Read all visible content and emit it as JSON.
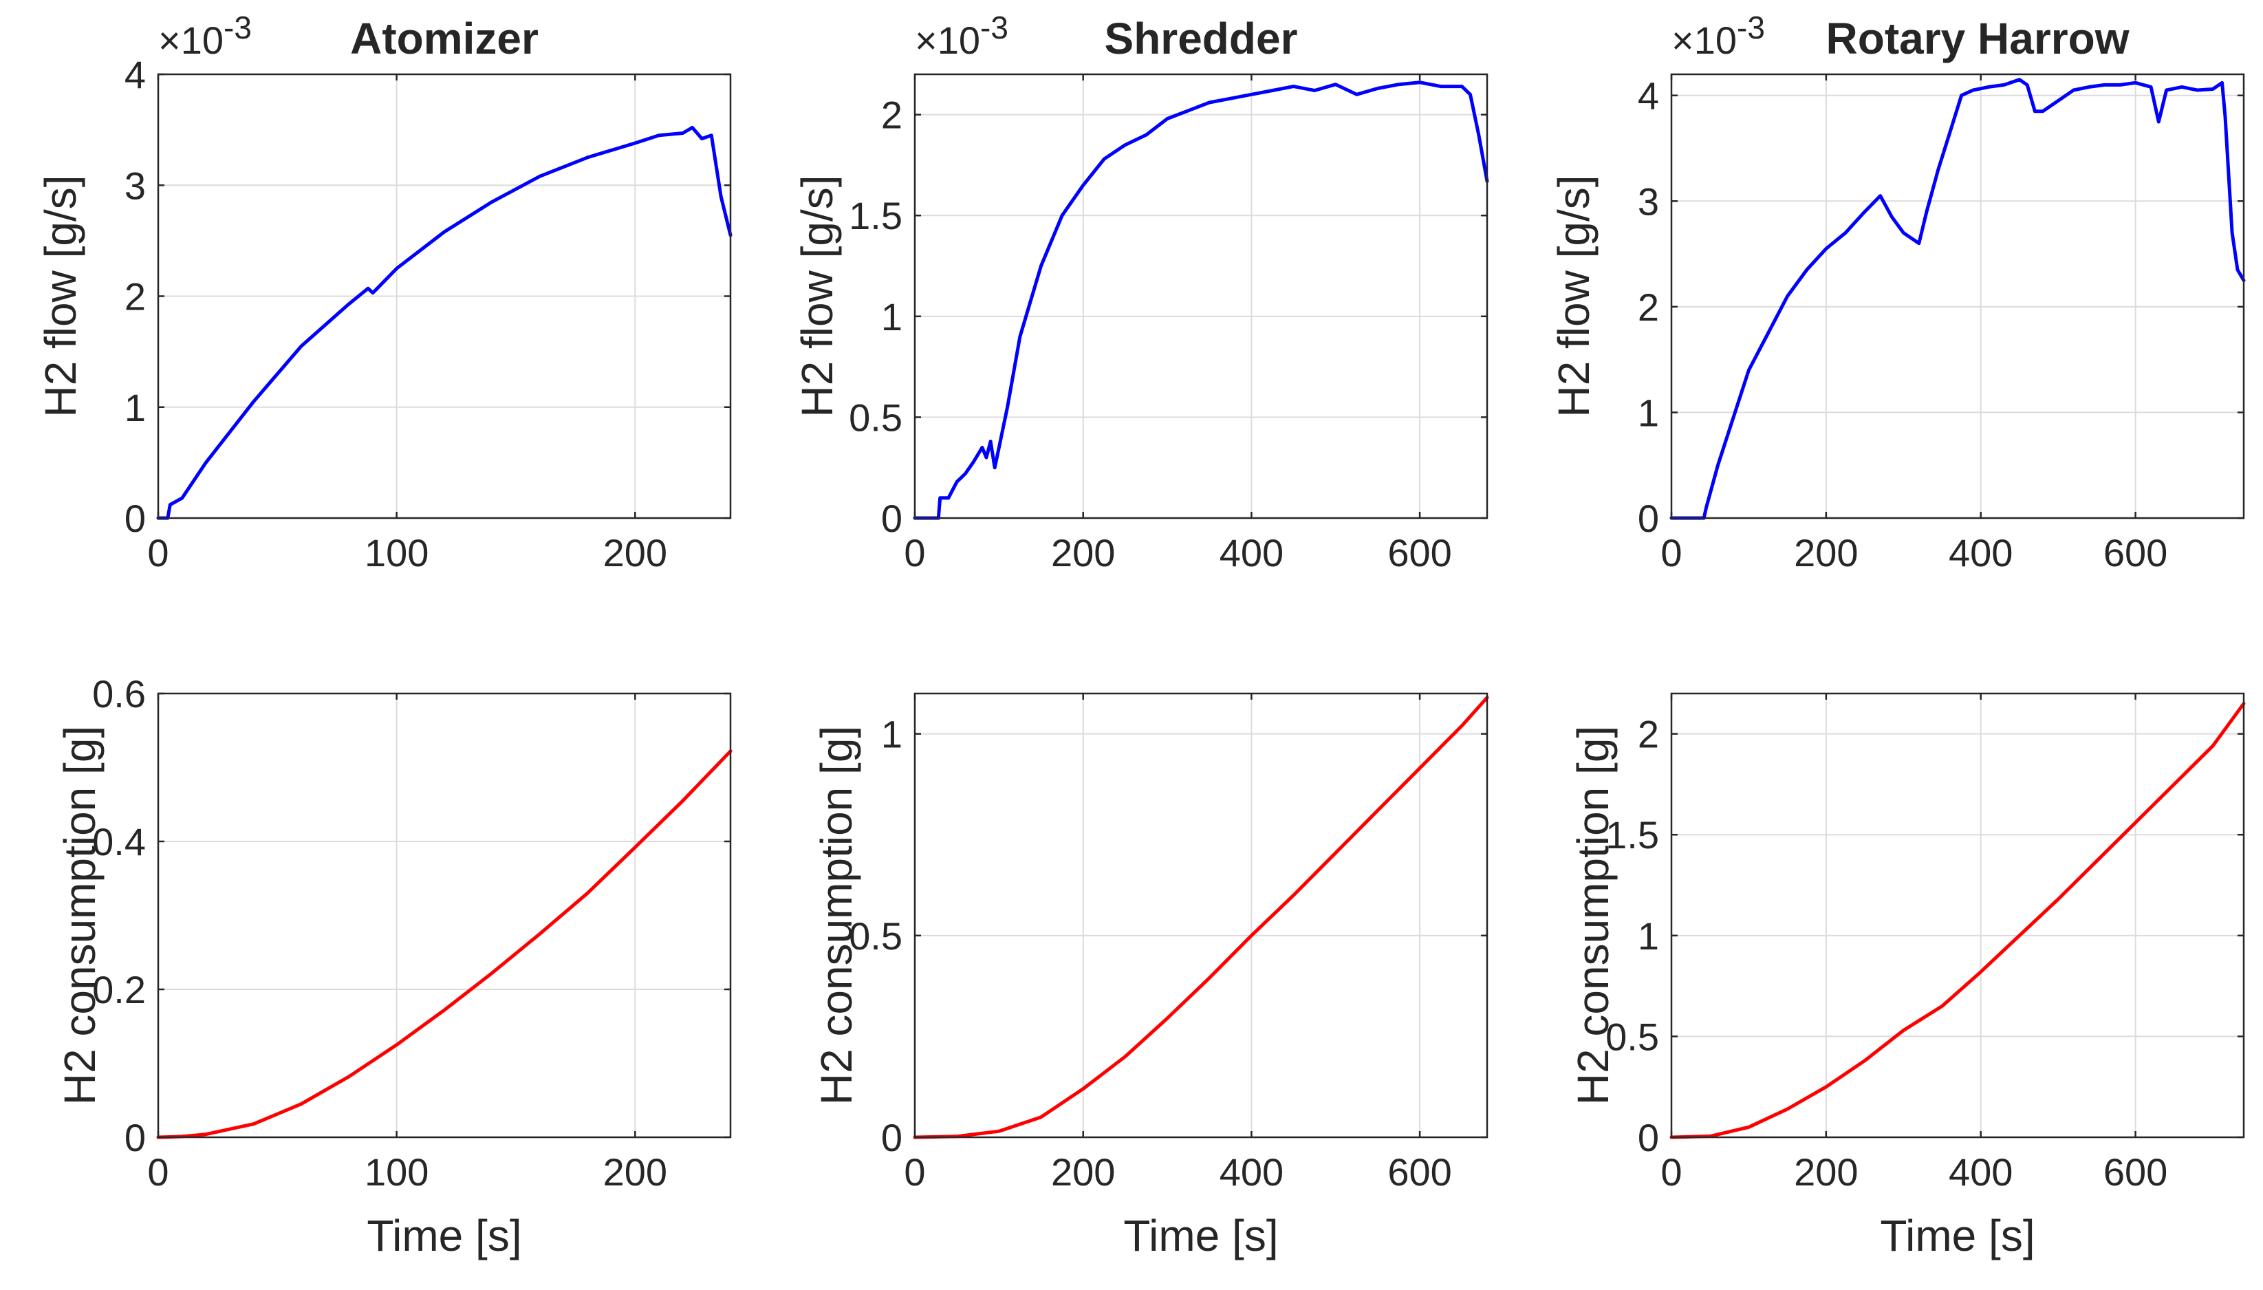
{
  "chart_data": [
    {
      "type": "line",
      "panel": "top-left",
      "title": "Atomizer",
      "exponent_label": "×10-3",
      "xlabel": "",
      "ylabel": "H2 flow [g/s]",
      "xlim": [
        0,
        240
      ],
      "ylim": [
        0,
        4
      ],
      "xticks": [
        0,
        100,
        200
      ],
      "yticks": [
        0,
        1,
        2,
        3,
        4
      ],
      "xtick_labels": [
        "0",
        "100",
        "200"
      ],
      "ytick_labels": [
        "0",
        "1",
        "2",
        "3",
        "4"
      ],
      "color": "#0000ff",
      "grid": true,
      "series": [
        {
          "name": "H2 flow",
          "x": [
            0,
            4,
            5,
            10,
            20,
            40,
            60,
            80,
            88,
            90,
            100,
            120,
            140,
            160,
            180,
            200,
            210,
            220,
            224,
            228,
            232,
            236,
            240
          ],
          "y": [
            0.0,
            0.0,
            0.12,
            0.18,
            0.5,
            1.05,
            1.55,
            1.93,
            2.07,
            2.03,
            2.25,
            2.58,
            2.85,
            3.08,
            3.25,
            3.38,
            3.45,
            3.47,
            3.52,
            3.42,
            3.45,
            2.9,
            2.55
          ]
        }
      ]
    },
    {
      "type": "line",
      "panel": "top-middle",
      "title": "Shredder",
      "exponent_label": "×10-3",
      "xlabel": "",
      "ylabel": "H2 flow [g/s]",
      "xlim": [
        0,
        680
      ],
      "ylim": [
        0,
        2.2
      ],
      "xticks": [
        0,
        200,
        400,
        600
      ],
      "yticks": [
        0,
        0.5,
        1,
        1.5,
        2
      ],
      "xtick_labels": [
        "0",
        "200",
        "400",
        "600"
      ],
      "ytick_labels": [
        "0",
        "0.5",
        "1",
        "1.5",
        "2"
      ],
      "color": "#0000ff",
      "grid": true,
      "series": [
        {
          "name": "H2 flow",
          "x": [
            0,
            28,
            30,
            40,
            50,
            60,
            70,
            80,
            85,
            90,
            95,
            100,
            110,
            125,
            150,
            175,
            200,
            225,
            250,
            275,
            300,
            325,
            350,
            375,
            400,
            425,
            450,
            475,
            500,
            525,
            550,
            575,
            600,
            625,
            650,
            660,
            670,
            680
          ],
          "y": [
            0.0,
            0.0,
            0.1,
            0.1,
            0.18,
            0.22,
            0.28,
            0.35,
            0.3,
            0.38,
            0.25,
            0.35,
            0.55,
            0.9,
            1.25,
            1.5,
            1.65,
            1.78,
            1.85,
            1.9,
            1.98,
            2.02,
            2.06,
            2.08,
            2.1,
            2.12,
            2.14,
            2.12,
            2.15,
            2.1,
            2.13,
            2.15,
            2.16,
            2.14,
            2.14,
            2.1,
            1.9,
            1.67
          ]
        }
      ]
    },
    {
      "type": "line",
      "panel": "top-right",
      "title": "Rotary Harrow",
      "exponent_label": "×10-3",
      "xlabel": "",
      "ylabel": "H2 flow [g/s]",
      "xlim": [
        0,
        740
      ],
      "ylim": [
        0,
        4.2
      ],
      "xticks": [
        0,
        200,
        400,
        600
      ],
      "yticks": [
        0,
        1,
        2,
        3,
        4
      ],
      "xtick_labels": [
        "0",
        "200",
        "400",
        "600"
      ],
      "ytick_labels": [
        "0",
        "1",
        "2",
        "3",
        "4"
      ],
      "color": "#0000ff",
      "grid": true,
      "series": [
        {
          "name": "H2 flow",
          "x": [
            0,
            42,
            45,
            60,
            80,
            100,
            125,
            150,
            175,
            200,
            225,
            250,
            270,
            285,
            300,
            320,
            330,
            345,
            360,
            375,
            390,
            410,
            430,
            450,
            460,
            470,
            480,
            500,
            520,
            540,
            560,
            580,
            600,
            620,
            630,
            640,
            660,
            680,
            700,
            712,
            716,
            725,
            732,
            740
          ],
          "y": [
            0.0,
            0.0,
            0.1,
            0.5,
            0.95,
            1.4,
            1.75,
            2.1,
            2.35,
            2.55,
            2.7,
            2.9,
            3.05,
            2.85,
            2.7,
            2.6,
            2.9,
            3.3,
            3.65,
            4.0,
            4.05,
            4.08,
            4.1,
            4.15,
            4.1,
            3.85,
            3.85,
            3.95,
            4.05,
            4.08,
            4.1,
            4.1,
            4.12,
            4.08,
            3.75,
            4.05,
            4.08,
            4.05,
            4.06,
            4.12,
            3.8,
            2.7,
            2.35,
            2.25
          ]
        }
      ]
    },
    {
      "type": "line",
      "panel": "bottom-left",
      "title": "",
      "xlabel": "Time [s]",
      "ylabel": "H2 consumption [g]",
      "xlim": [
        0,
        240
      ],
      "ylim": [
        0,
        0.6
      ],
      "xticks": [
        0,
        100,
        200
      ],
      "yticks": [
        0,
        0.2,
        0.4,
        0.6
      ],
      "xtick_labels": [
        "0",
        "100",
        "200"
      ],
      "ytick_labels": [
        "0",
        "0.2",
        "0.4",
        "0.6"
      ],
      "color": "#ff0000",
      "grid": true,
      "series": [
        {
          "name": "H2 consumption",
          "x": [
            0,
            10,
            20,
            40,
            60,
            80,
            100,
            120,
            140,
            160,
            180,
            200,
            220,
            240
          ],
          "y": [
            0.0,
            0.001,
            0.004,
            0.018,
            0.045,
            0.082,
            0.125,
            0.172,
            0.222,
            0.275,
            0.33,
            0.392,
            0.455,
            0.522
          ]
        }
      ]
    },
    {
      "type": "line",
      "panel": "bottom-middle",
      "title": "",
      "xlabel": "Time [s]",
      "ylabel": "H2 consumption [g]",
      "xlim": [
        0,
        680
      ],
      "ylim": [
        0,
        1.1
      ],
      "xticks": [
        0,
        200,
        400,
        600
      ],
      "yticks": [
        0,
        0.5,
        1
      ],
      "xtick_labels": [
        "0",
        "200",
        "400",
        "600"
      ],
      "ytick_labels": [
        "0",
        "0.5",
        "1"
      ],
      "color": "#ff0000",
      "grid": true,
      "series": [
        {
          "name": "H2 consumption",
          "x": [
            0,
            50,
            100,
            150,
            200,
            250,
            300,
            350,
            400,
            450,
            500,
            550,
            600,
            650,
            680
          ],
          "y": [
            0.0,
            0.002,
            0.015,
            0.05,
            0.12,
            0.2,
            0.295,
            0.395,
            0.5,
            0.6,
            0.705,
            0.81,
            0.915,
            1.02,
            1.09
          ]
        }
      ]
    },
    {
      "type": "line",
      "panel": "bottom-right",
      "title": "",
      "xlabel": "Time [s]",
      "ylabel": "H2 consumption [g]",
      "xlim": [
        0,
        740
      ],
      "ylim": [
        0,
        2.2
      ],
      "xticks": [
        0,
        200,
        400,
        600
      ],
      "yticks": [
        0,
        0.5,
        1,
        1.5,
        2
      ],
      "xtick_labels": [
        "0",
        "200",
        "400",
        "600"
      ],
      "ytick_labels": [
        "0",
        "0.5",
        "1",
        "1.5",
        "2"
      ],
      "color": "#ff0000",
      "grid": true,
      "series": [
        {
          "name": "H2 consumption",
          "x": [
            0,
            50,
            100,
            150,
            200,
            250,
            300,
            350,
            400,
            450,
            500,
            550,
            600,
            650,
            700,
            740
          ],
          "y": [
            0.0,
            0.005,
            0.05,
            0.14,
            0.25,
            0.38,
            0.53,
            0.65,
            0.82,
            1.0,
            1.18,
            1.37,
            1.56,
            1.75,
            1.94,
            2.15
          ]
        }
      ]
    }
  ]
}
